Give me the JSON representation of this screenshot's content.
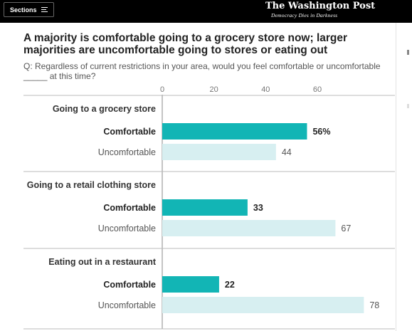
{
  "header": {
    "sections_label": "Sections",
    "logo": "The Washington Post",
    "tagline": "Democracy Dies in Darkness"
  },
  "article": {
    "title": "A majority is comfortable going to a grocery store now; larger majorities are uncomfortable going to stores or eating out",
    "question": "Q: Regardless of current restrictions in your area, would you feel comfortable or uncomfortable _____ at this time?"
  },
  "colors": {
    "comfortable": "#12b5b5",
    "uncomfortable": "#d7eff1"
  },
  "chart_data": {
    "type": "bar",
    "orientation": "horizontal",
    "xlim": [
      0,
      78
    ],
    "x_ticks": [
      "0",
      "20",
      "40",
      "60"
    ],
    "grid": false,
    "groups": [
      {
        "label": "Going to a grocery store",
        "bars": [
          {
            "label": "Comfortable",
            "value": 56,
            "value_label": "56%"
          },
          {
            "label": "Uncomfortable",
            "value": 44,
            "value_label": "44"
          }
        ]
      },
      {
        "label": "Going to a retail clothing store",
        "bars": [
          {
            "label": "Comfortable",
            "value": 33,
            "value_label": "33"
          },
          {
            "label": "Uncomfortable",
            "value": 67,
            "value_label": "67"
          }
        ]
      },
      {
        "label": "Eating out in a restaurant",
        "bars": [
          {
            "label": "Comfortable",
            "value": 22,
            "value_label": "22"
          },
          {
            "label": "Uncomfortable",
            "value": 78,
            "value_label": "78"
          }
        ]
      }
    ]
  }
}
